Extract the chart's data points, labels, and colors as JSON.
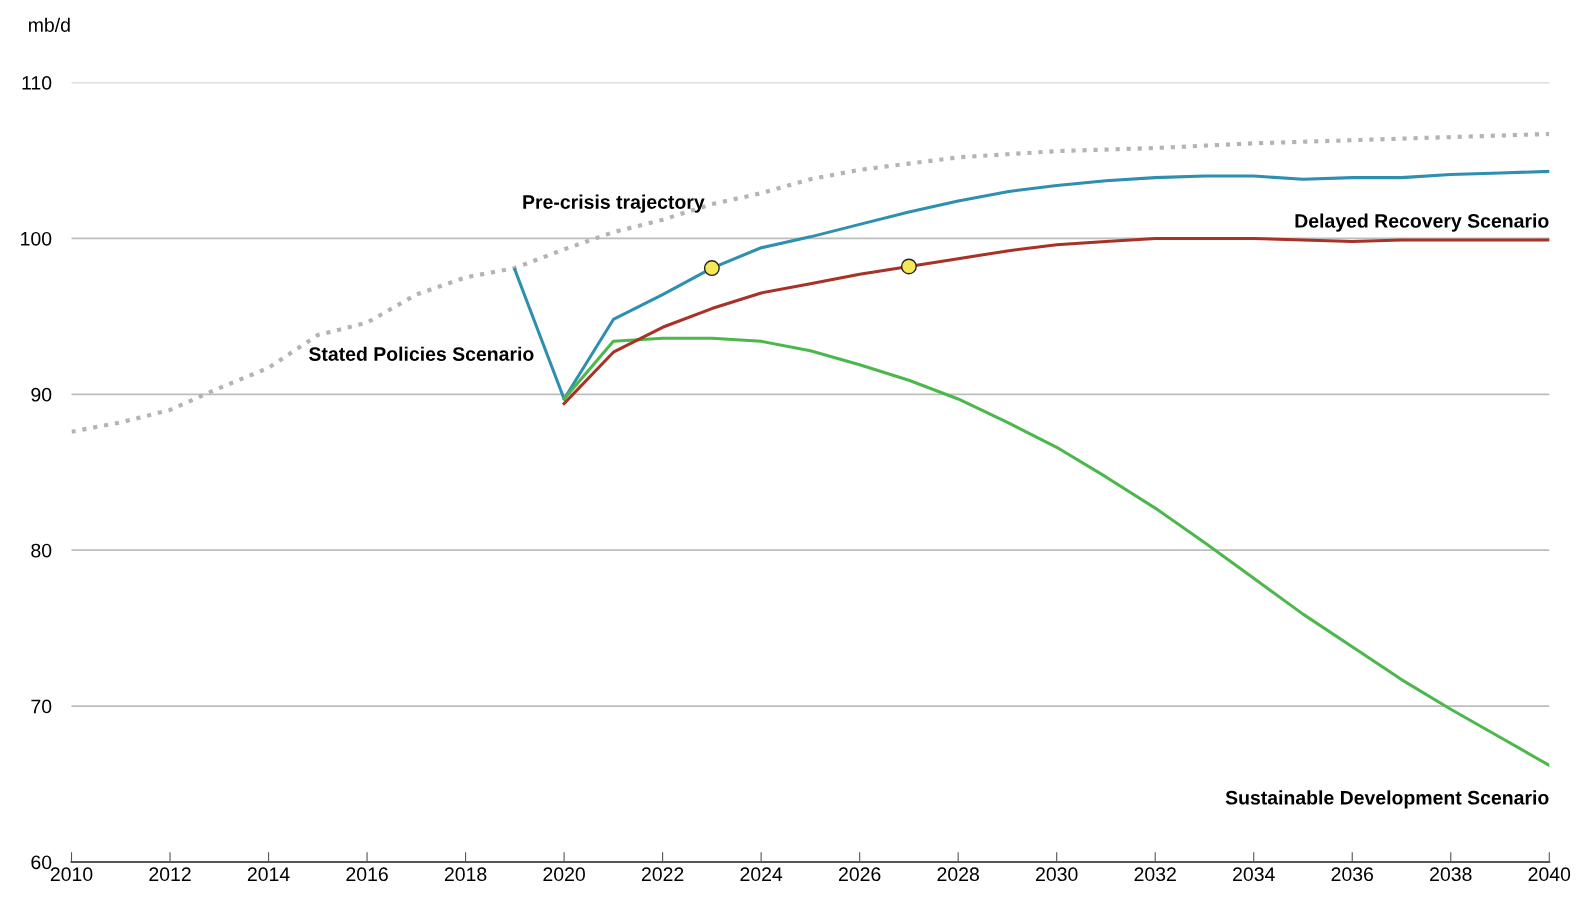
{
  "chart_data": {
    "type": "line",
    "ylabel": "mb/d",
    "xlim": [
      2010,
      2040
    ],
    "ylim": [
      60,
      110
    ],
    "xticks": [
      2010,
      2012,
      2014,
      2016,
      2018,
      2020,
      2022,
      2024,
      2026,
      2028,
      2030,
      2032,
      2034,
      2036,
      2038,
      2040
    ],
    "yticks": [
      60,
      70,
      80,
      90,
      100,
      110
    ],
    "grid": "y",
    "legend": false,
    "series": [
      {
        "name": "Pre-crisis trajectory",
        "color": "#b4b4b4",
        "line_style": "dotted",
        "x": [
          2010,
          2011,
          2012,
          2013,
          2014,
          2015,
          2016,
          2017,
          2018,
          2019,
          2020,
          2021,
          2022,
          2023,
          2024,
          2025,
          2026,
          2027,
          2028,
          2029,
          2030,
          2032,
          2034,
          2036,
          2038,
          2040
        ],
        "values": [
          87.6,
          88.2,
          89.0,
          90.4,
          91.7,
          93.8,
          94.6,
          96.4,
          97.5,
          98.1,
          99.3,
          100.4,
          101.2,
          102.2,
          102.9,
          103.8,
          104.4,
          104.8,
          105.2,
          105.4,
          105.6,
          105.8,
          106.1,
          106.3,
          106.5,
          106.7
        ]
      },
      {
        "name": "Stated Policies Scenario",
        "color": "#2e8fb0",
        "line_style": "solid",
        "x": [
          2019,
          2020,
          2021,
          2022,
          2023,
          2024,
          2025,
          2026,
          2027,
          2028,
          2029,
          2030,
          2031,
          2032,
          2033,
          2034,
          2035,
          2036,
          2037,
          2038,
          2039,
          2040
        ],
        "values": [
          98.0,
          89.7,
          94.8,
          96.4,
          98.1,
          99.4,
          100.1,
          100.9,
          101.7,
          102.4,
          103.0,
          103.4,
          103.7,
          103.9,
          104.0,
          104.0,
          103.8,
          103.9,
          103.9,
          104.1,
          104.2,
          104.3
        ]
      },
      {
        "name": "Sustainable Development Scenario",
        "color": "#4cb84c",
        "line_style": "solid",
        "x": [
          2020,
          2021,
          2022,
          2023,
          2024,
          2025,
          2026,
          2027,
          2028,
          2029,
          2030,
          2031,
          2032,
          2033,
          2034,
          2035,
          2036,
          2037,
          2038,
          2039,
          2040
        ],
        "values": [
          89.7,
          93.4,
          93.6,
          93.6,
          93.4,
          92.8,
          91.9,
          90.9,
          89.7,
          88.2,
          86.6,
          84.7,
          82.7,
          80.5,
          78.2,
          75.9,
          73.8,
          71.7,
          69.8,
          68.0,
          66.2
        ]
      },
      {
        "name": "Delayed Recovery Scenario",
        "color": "#a83226",
        "line_style": "solid",
        "x": [
          2020,
          2021,
          2022,
          2023,
          2024,
          2025,
          2026,
          2027,
          2028,
          2029,
          2030,
          2031,
          2032,
          2033,
          2034,
          2035,
          2036,
          2037,
          2038,
          2039,
          2040
        ],
        "values": [
          89.4,
          92.7,
          94.3,
          95.5,
          96.5,
          97.1,
          97.7,
          98.2,
          98.7,
          99.2,
          99.6,
          99.8,
          100.0,
          100.0,
          100.0,
          99.9,
          99.8,
          99.9,
          99.9,
          99.9,
          99.9
        ]
      },
      {
        "type": "scatter",
        "marker": "circle",
        "color": "#f2e85a",
        "x": [
          2023,
          2027
        ],
        "values": [
          98.1,
          98.2
        ]
      }
    ]
  }
}
